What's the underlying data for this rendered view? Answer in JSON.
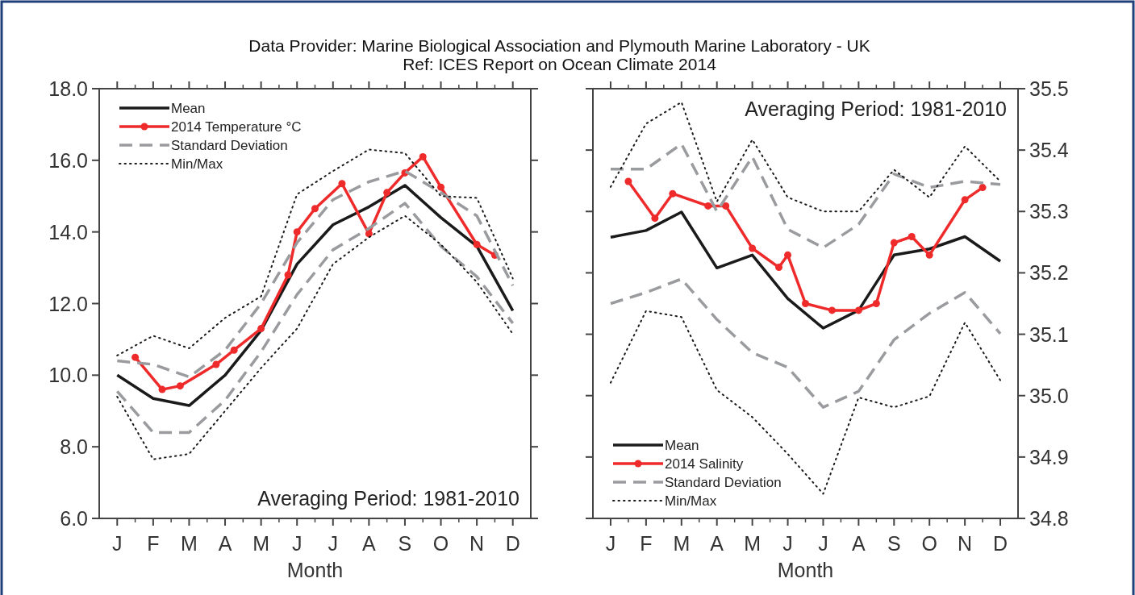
{
  "chart_data": [
    {
      "type": "line",
      "title": "Data Provider: Marine Biological Association and Plymouth Marine Laboratory - UK",
      "subtitle": "Ref: ICES Report on Ocean Climate 2014",
      "xlabel": "Month",
      "categories": [
        "J",
        null,
        null,
        null,
        "F",
        null,
        null,
        null,
        "M",
        null,
        null,
        null,
        "A",
        null,
        null,
        null,
        "M",
        null,
        null,
        null,
        "J",
        null,
        null,
        null,
        "J",
        null,
        null,
        null,
        "A",
        null,
        null,
        null,
        "S",
        null,
        null,
        null,
        "O",
        null,
        null,
        null,
        "N",
        null,
        null,
        null,
        "D"
      ],
      "ylim": [
        6,
        18
      ],
      "yticks": [
        {
          "value": 6,
          "label": "6.0"
        },
        {
          "value": 8,
          "label": "8.0"
        },
        {
          "value": 10,
          "label": "10.0"
        },
        {
          "value": 12,
          "label": "12.0"
        },
        {
          "value": 14,
          "label": "14.0"
        },
        {
          "value": 16,
          "label": "16.0"
        },
        {
          "value": 18,
          "label": "18.0"
        }
      ],
      "legend": "top left",
      "grid": false,
      "annotations": [
        "Averaging Period: 1981-2010"
      ],
      "series": [
        {
          "name": "Mean",
          "color": "#1a1a1a",
          "line_style": "solid",
          "marker": "none",
          "values": [
            10.0,
            null,
            null,
            null,
            9.35,
            null,
            null,
            null,
            9.15,
            null,
            null,
            null,
            10.0,
            null,
            null,
            null,
            11.25,
            null,
            null,
            null,
            13.1,
            null,
            null,
            null,
            14.2,
            null,
            null,
            null,
            14.7,
            null,
            null,
            null,
            15.3,
            null,
            null,
            null,
            14.4,
            null,
            null,
            null,
            13.6,
            null,
            null,
            null,
            11.8
          ]
        },
        {
          "name": "2014 Temperature °C",
          "color": "#ee2a2a",
          "line_style": "solid",
          "marker": "circle",
          "values": [
            null,
            null,
            10.5,
            null,
            null,
            9.6,
            null,
            9.7,
            null,
            null,
            null,
            10.3,
            null,
            10.7,
            null,
            null,
            11.3,
            null,
            null,
            12.8,
            14.0,
            null,
            14.65,
            null,
            null,
            15.35,
            null,
            null,
            13.95,
            null,
            15.1,
            null,
            15.65,
            null,
            16.1,
            null,
            15.25,
            null,
            null,
            null,
            13.65,
            null,
            13.35,
            null,
            null
          ]
        },
        {
          "name": "Standard Deviation",
          "color": "#9a9b9e",
          "line_style": "dashed",
          "marker": "none",
          "values": [
            10.4,
            null,
            null,
            null,
            10.3,
            null,
            null,
            null,
            9.95,
            null,
            null,
            null,
            10.7,
            null,
            null,
            null,
            12.0,
            null,
            null,
            null,
            13.7,
            null,
            null,
            null,
            14.9,
            null,
            null,
            null,
            15.4,
            null,
            null,
            null,
            15.7,
            null,
            null,
            null,
            15.1,
            null,
            null,
            null,
            14.45,
            null,
            null,
            null,
            12.5
          ]
        },
        {
          "color": "#9a9b9e",
          "line_style": "dashed",
          "marker": "none",
          "values": [
            9.55,
            null,
            null,
            null,
            8.4,
            null,
            null,
            null,
            8.4,
            null,
            null,
            null,
            9.3,
            null,
            null,
            null,
            10.65,
            null,
            null,
            null,
            12.25,
            null,
            null,
            null,
            13.5,
            null,
            null,
            null,
            14.1,
            null,
            null,
            null,
            14.8,
            null,
            null,
            null,
            13.6,
            null,
            null,
            null,
            12.75,
            null,
            null,
            null,
            11.45
          ]
        },
        {
          "name": "Min/Max",
          "color": "#1a1a1a",
          "line_style": "dotted",
          "marker": "none",
          "values": [
            10.55,
            null,
            null,
            null,
            11.1,
            null,
            null,
            null,
            10.75,
            null,
            null,
            null,
            11.6,
            null,
            null,
            null,
            12.2,
            null,
            null,
            null,
            15.05,
            null,
            null,
            null,
            15.7,
            null,
            null,
            null,
            16.3,
            null,
            null,
            null,
            16.2,
            null,
            null,
            null,
            15.0,
            null,
            null,
            null,
            14.95,
            null,
            null,
            null,
            12.7
          ]
        },
        {
          "color": "#1a1a1a",
          "line_style": "dotted",
          "marker": "none",
          "values": [
            9.4,
            null,
            null,
            null,
            7.65,
            null,
            null,
            null,
            7.8,
            null,
            null,
            null,
            9.0,
            null,
            null,
            null,
            10.2,
            null,
            null,
            null,
            11.3,
            null,
            null,
            null,
            13.1,
            null,
            null,
            null,
            13.85,
            null,
            null,
            null,
            14.45,
            null,
            null,
            null,
            13.65,
            null,
            null,
            null,
            12.6,
            null,
            null,
            null,
            11.15
          ]
        }
      ]
    },
    {
      "type": "line",
      "xlabel": "Month",
      "categories": [
        "J",
        null,
        null,
        null,
        "F",
        null,
        null,
        null,
        "M",
        null,
        null,
        null,
        "A",
        null,
        null,
        null,
        "M",
        null,
        null,
        null,
        "J",
        null,
        null,
        null,
        "J",
        null,
        null,
        null,
        "A",
        null,
        null,
        null,
        "S",
        null,
        null,
        null,
        "O",
        null,
        null,
        null,
        "N",
        null,
        null,
        null,
        "D"
      ],
      "y2lim": [
        34.8,
        35.5
      ],
      "y2ticks": [
        34.8,
        34.9,
        {
          "value": 35,
          "label": "35.0"
        },
        35.1,
        35.2,
        35.3,
        35.4,
        35.5
      ],
      "legend": "bottom left",
      "grid": false,
      "annotations": [
        "Averaging Period: 1981-2010"
      ],
      "series": [
        {
          "name": "Mean",
          "color": "#1a1a1a",
          "line_style": "solid",
          "marker": "none",
          "axis": "y2",
          "values": [
            35.258,
            null,
            null,
            null,
            35.269,
            null,
            null,
            null,
            35.299,
            null,
            null,
            null,
            35.208,
            null,
            null,
            null,
            35.229,
            null,
            null,
            null,
            35.158,
            null,
            null,
            null,
            35.11,
            null,
            null,
            null,
            35.139,
            null,
            null,
            null,
            35.229,
            null,
            null,
            null,
            35.239,
            null,
            null,
            null,
            35.259,
            null,
            null,
            null,
            35.219
          ]
        },
        {
          "name": "2014 Salinity",
          "color": "#ee2a2a",
          "line_style": "solid",
          "marker": "circle",
          "axis": "y2",
          "values": [
            null,
            null,
            35.349,
            null,
            null,
            35.289,
            null,
            35.329,
            null,
            null,
            null,
            35.309,
            null,
            35.309,
            null,
            null,
            35.24,
            null,
            null,
            35.209,
            35.229,
            null,
            35.15,
            null,
            null,
            35.139,
            null,
            null,
            35.139,
            null,
            35.15,
            null,
            35.249,
            null,
            35.259,
            null,
            35.229,
            null,
            null,
            null,
            35.319,
            null,
            35.339,
            null,
            null
          ]
        },
        {
          "name": "Standard Deviation",
          "color": "#9a9b9e",
          "line_style": "dashed",
          "marker": "none",
          "axis": "y2",
          "values": [
            35.369,
            null,
            null,
            null,
            35.369,
            null,
            null,
            null,
            35.41,
            null,
            null,
            null,
            35.3,
            null,
            null,
            null,
            35.389,
            null,
            null,
            null,
            35.271,
            null,
            null,
            null,
            35.241,
            null,
            null,
            null,
            35.279,
            null,
            null,
            null,
            35.361,
            null,
            null,
            null,
            35.339,
            null,
            null,
            null,
            35.349,
            null,
            null,
            null,
            35.344
          ]
        },
        {
          "color": "#9a9b9e",
          "line_style": "dashed",
          "marker": "none",
          "axis": "y2",
          "values": [
            35.15,
            null,
            null,
            null,
            35.168,
            null,
            null,
            null,
            35.19,
            null,
            null,
            null,
            35.124,
            null,
            null,
            null,
            35.07,
            null,
            null,
            null,
            35.046,
            null,
            null,
            null,
            34.981,
            null,
            null,
            null,
            35.007,
            null,
            null,
            null,
            35.091,
            null,
            null,
            null,
            35.134,
            null,
            null,
            null,
            35.168,
            null,
            null,
            null,
            35.101
          ]
        },
        {
          "name": "Min/Max",
          "color": "#1a1a1a",
          "line_style": "dotted",
          "marker": "none",
          "axis": "y2",
          "values": [
            35.34,
            null,
            null,
            null,
            35.443,
            null,
            null,
            null,
            35.478,
            null,
            null,
            null,
            35.316,
            null,
            null,
            null,
            35.417,
            null,
            null,
            null,
            35.323,
            null,
            null,
            null,
            35.3,
            null,
            null,
            null,
            35.3,
            null,
            null,
            null,
            35.368,
            null,
            null,
            null,
            35.323,
            null,
            null,
            null,
            35.406,
            null,
            null,
            null,
            35.349
          ]
        },
        {
          "color": "#1a1a1a",
          "line_style": "dotted",
          "marker": "none",
          "axis": "y2",
          "values": [
            35.021,
            null,
            null,
            null,
            35.138,
            null,
            null,
            null,
            35.128,
            null,
            null,
            null,
            35.009,
            null,
            null,
            null,
            34.965,
            null,
            null,
            null,
            34.905,
            null,
            null,
            null,
            34.84,
            null,
            null,
            null,
            34.997,
            null,
            null,
            null,
            34.981,
            null,
            null,
            null,
            34.999,
            null,
            null,
            null,
            35.119,
            null,
            null,
            null,
            35.025
          ]
        }
      ]
    }
  ]
}
